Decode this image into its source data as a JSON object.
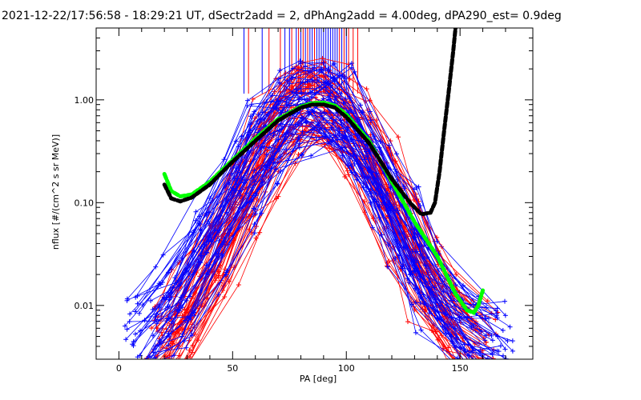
{
  "chart_data": {
    "type": "line",
    "title": "2021-12-22/17:56:58 - 18:29:21 UT, dSectr2add = 2, dPhAng2add = 4.00deg, dPA290_est=   0.9deg",
    "xlabel": "PA [deg]",
    "ylabel": "nflux [#/(cm^2 s sr MeV)]",
    "xlim": [
      -10,
      182
    ],
    "ylim": [
      0.003,
      5
    ],
    "yscale": "log",
    "xticks": [
      0,
      50,
      100,
      150
    ],
    "xtick_labels": [
      "0",
      "50",
      "100",
      "150"
    ],
    "yticks": [
      0.01,
      0.1,
      1.0
    ],
    "ytick_labels": [
      "0.01",
      "0.10",
      "1.00"
    ],
    "grid": false,
    "legend": "none",
    "series": [
      {
        "color": "#ff0000",
        "marker": "plus",
        "style": "many-thin-lines",
        "points": [
          [
            20,
            0.004
          ],
          [
            30,
            0.008
          ],
          [
            45,
            0.03
          ],
          [
            55,
            0.12
          ],
          [
            65,
            0.35
          ],
          [
            75,
            0.75
          ],
          [
            85,
            1.0
          ],
          [
            95,
            0.8
          ],
          [
            105,
            0.45
          ],
          [
            115,
            0.18
          ],
          [
            125,
            0.06
          ],
          [
            135,
            0.02
          ],
          [
            145,
            0.008
          ],
          [
            160,
            0.004
          ]
        ]
      },
      {
        "color": "#0000ff",
        "marker": "plus",
        "style": "many-thin-lines",
        "points": [
          [
            10,
            0.005
          ],
          [
            25,
            0.01
          ],
          [
            40,
            0.04
          ],
          [
            55,
            0.15
          ],
          [
            65,
            0.4
          ],
          [
            75,
            0.7
          ],
          [
            85,
            0.85
          ],
          [
            95,
            0.75
          ],
          [
            105,
            0.4
          ],
          [
            115,
            0.15
          ],
          [
            125,
            0.05
          ],
          [
            135,
            0.015
          ],
          [
            150,
            0.006
          ],
          [
            165,
            0.004
          ]
        ]
      },
      {
        "color": "#00ff00",
        "style": "dashed-thick",
        "points": [
          [
            20,
            0.19
          ],
          [
            23,
            0.13
          ],
          [
            27,
            0.115
          ],
          [
            32,
            0.12
          ],
          [
            40,
            0.16
          ],
          [
            50,
            0.26
          ],
          [
            60,
            0.42
          ],
          [
            70,
            0.65
          ],
          [
            80,
            0.86
          ],
          [
            85,
            0.93
          ],
          [
            90,
            0.94
          ],
          [
            95,
            0.88
          ],
          [
            100,
            0.72
          ],
          [
            110,
            0.4
          ],
          [
            120,
            0.16
          ],
          [
            130,
            0.065
          ],
          [
            140,
            0.03
          ],
          [
            148,
            0.013
          ],
          [
            153,
            0.009
          ],
          [
            156,
            0.0085
          ],
          [
            158,
            0.01
          ],
          [
            160,
            0.014
          ]
        ]
      },
      {
        "color": "#000000",
        "style": "dashed-thick",
        "points": [
          [
            20,
            0.15
          ],
          [
            23,
            0.11
          ],
          [
            27,
            0.103
          ],
          [
            32,
            0.112
          ],
          [
            40,
            0.15
          ],
          [
            50,
            0.25
          ],
          [
            60,
            0.4
          ],
          [
            70,
            0.63
          ],
          [
            80,
            0.84
          ],
          [
            85,
            0.9
          ],
          [
            90,
            0.9
          ],
          [
            95,
            0.84
          ],
          [
            100,
            0.68
          ],
          [
            110,
            0.38
          ],
          [
            120,
            0.17
          ],
          [
            128,
            0.1
          ],
          [
            133,
            0.077
          ],
          [
            137,
            0.08
          ],
          [
            139,
            0.1
          ],
          [
            141,
            0.2
          ],
          [
            143,
            0.5
          ],
          [
            145,
            1.2
          ],
          [
            147,
            3.0
          ],
          [
            148,
            5.0
          ]
        ]
      }
    ],
    "vertical_lines": [
      {
        "color": "#0000ff",
        "x": [
          55,
          63,
          73,
          75,
          78,
          80,
          82,
          84,
          85,
          86,
          87,
          88,
          89,
          90,
          91,
          92,
          93,
          94,
          95,
          96,
          98,
          100
        ]
      },
      {
        "color": "#ff0000",
        "x": [
          57,
          66,
          71,
          76,
          79,
          81,
          83,
          86,
          97,
          99,
          101,
          103,
          105
        ]
      }
    ]
  }
}
